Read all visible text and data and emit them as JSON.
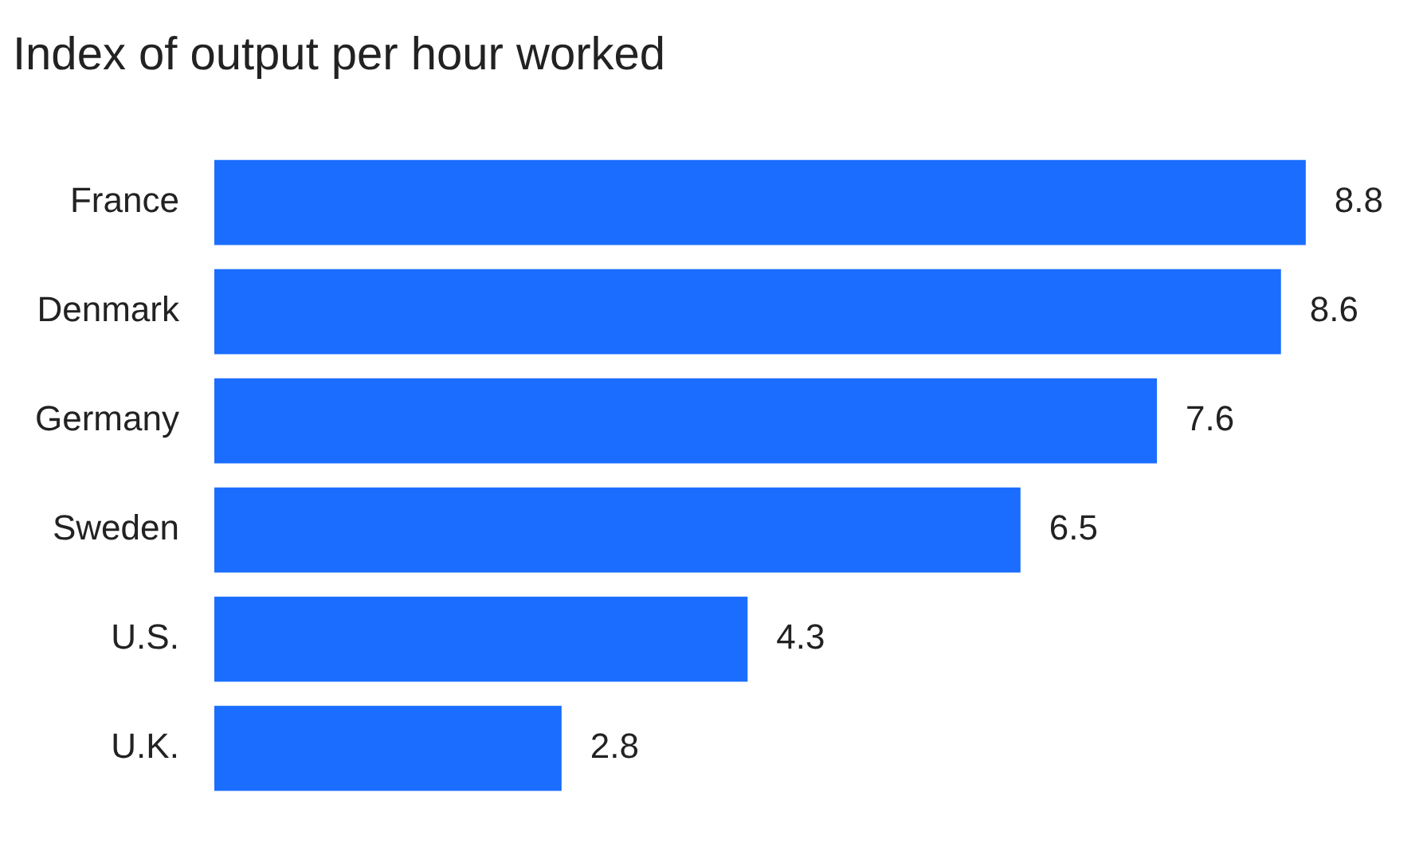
{
  "chart_data": {
    "type": "bar",
    "title": "Index of output per hour worked",
    "orientation": "horizontal",
    "categories": [
      "France",
      "Denmark",
      "Germany",
      "Sweden",
      "U.S.",
      "U.K."
    ],
    "values": [
      8.8,
      8.6,
      7.6,
      6.5,
      4.3,
      2.8
    ],
    "color": "#1a6dff",
    "data_labels": true,
    "legend": false
  }
}
